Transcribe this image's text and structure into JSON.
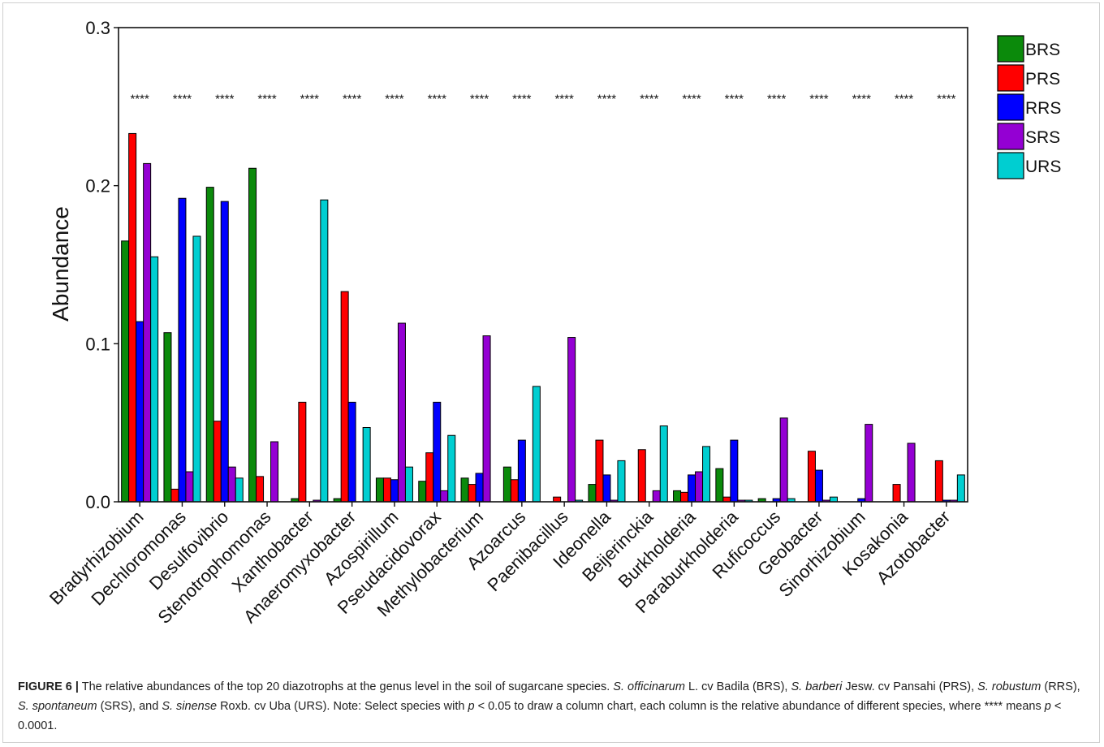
{
  "chart_data": {
    "type": "bar",
    "ylabel": "Abundance",
    "xlabel": "",
    "ylim": [
      0,
      0.3
    ],
    "yticks": [
      0.0,
      0.1,
      0.2,
      0.3
    ],
    "ytick_labels": [
      "0.0",
      "0.1",
      "0.2",
      "0.3"
    ],
    "grid": false,
    "legend_position": "top-right",
    "categories": [
      "Bradyrhizobium",
      "Dechloromonas",
      "Desulfovibrio",
      "Stenotrophomonas",
      "Xanthobacter",
      "Anaeromyxobacter",
      "Azospirillum",
      "Pseudacidovorax",
      "Methylobacterium",
      "Azoarcus",
      "Paenibacillus",
      "Ideonella",
      "Beijerinckia",
      "Burkholderia",
      "Paraburkholderia",
      "Ruficoccus",
      "Geobacter",
      "Sinorhizobium",
      "Kosakonia",
      "Azotobacter"
    ],
    "series": [
      {
        "name": "BRS",
        "color": "#0b8a0b",
        "values": [
          0.165,
          0.107,
          0.199,
          0.211,
          0.002,
          0.002,
          0.015,
          0.013,
          0.015,
          0.022,
          0.0,
          0.011,
          0.0,
          0.007,
          0.021,
          0.002,
          0.0,
          0.0,
          0.0,
          0.0
        ]
      },
      {
        "name": "PRS",
        "color": "#ff0000",
        "values": [
          0.233,
          0.008,
          0.051,
          0.016,
          0.063,
          0.133,
          0.015,
          0.031,
          0.011,
          0.014,
          0.003,
          0.039,
          0.033,
          0.006,
          0.003,
          0.0,
          0.032,
          0.0,
          0.011,
          0.026
        ]
      },
      {
        "name": "RRS",
        "color": "#0000ff",
        "values": [
          0.114,
          0.192,
          0.19,
          0.0,
          0.0,
          0.063,
          0.014,
          0.063,
          0.018,
          0.039,
          0.0,
          0.017,
          0.0,
          0.017,
          0.039,
          0.002,
          0.02,
          0.002,
          0.0,
          0.001
        ]
      },
      {
        "name": "SRS",
        "color": "#9400d3",
        "values": [
          0.214,
          0.019,
          0.022,
          0.038,
          0.001,
          0.0,
          0.113,
          0.007,
          0.105,
          0.0,
          0.104,
          0.001,
          0.007,
          0.019,
          0.001,
          0.053,
          0.001,
          0.049,
          0.037,
          0.001
        ]
      },
      {
        "name": "URS",
        "color": "#00ced1",
        "values": [
          0.155,
          0.168,
          0.015,
          0.0,
          0.191,
          0.047,
          0.022,
          0.042,
          0.0,
          0.073,
          0.001,
          0.026,
          0.048,
          0.035,
          0.001,
          0.002,
          0.003,
          0.0,
          0.0,
          0.017
        ]
      }
    ],
    "annotations": [
      "****",
      "****",
      "****",
      "****",
      "****",
      "****",
      "****",
      "****",
      "****",
      "****",
      "****",
      "****",
      "****",
      "****",
      "****",
      "****",
      "****",
      "****",
      "****",
      "****"
    ],
    "annotation_level": 0.257
  },
  "caption": {
    "label": "FIGURE 6 |",
    "segments": [
      {
        "text": " The relative abundances of the top 20 diazotrophs at the genus level in the soil of sugarcane species. ",
        "italic": false
      },
      {
        "text": "S. officinarum",
        "italic": true
      },
      {
        "text": " L. cv Badila (BRS), ",
        "italic": false
      },
      {
        "text": "S. barberi",
        "italic": true
      },
      {
        "text": " Jesw. cv Pansahi (PRS), ",
        "italic": false
      },
      {
        "text": "S. robustum",
        "italic": true
      },
      {
        "text": " (RRS), ",
        "italic": false
      },
      {
        "text": "S. spontaneum",
        "italic": true
      },
      {
        "text": " (SRS), and ",
        "italic": false
      },
      {
        "text": "S. sinense",
        "italic": true
      },
      {
        "text": " Roxb. cv Uba (URS). Note: Select species with ",
        "italic": false
      },
      {
        "text": "p",
        "italic": true
      },
      {
        "text": " < 0.05 to draw a column chart, each column is the relative abundance of different species, where **** means ",
        "italic": false
      },
      {
        "text": "p",
        "italic": true
      },
      {
        "text": " < 0.0001.",
        "italic": false
      }
    ]
  }
}
